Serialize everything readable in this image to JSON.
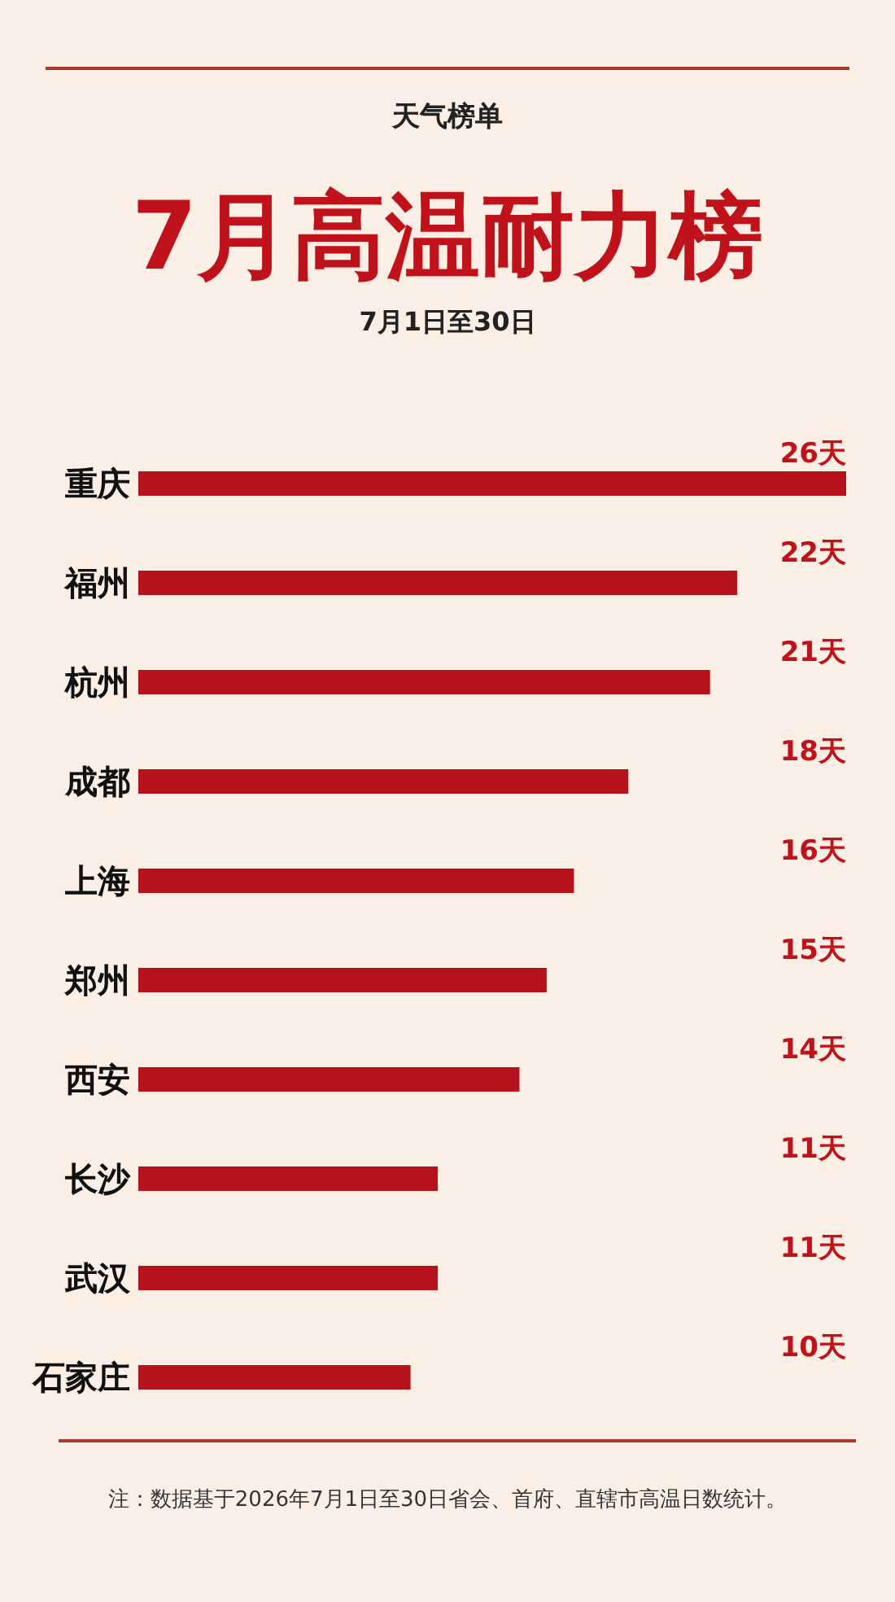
{
  "chart_data": {
    "type": "bar",
    "orientation": "horizontal",
    "title": "7月高温耐力榜",
    "subtitle": "7月1日至30日",
    "annotations": [
      "天气榜单",
      "注：数据基于2026年7月1日至30日省会、首府、直辖市高温日数统计。"
    ],
    "categories": [
      "重庆",
      "福州",
      "杭州",
      "成都",
      "上海",
      "郑州",
      "西安",
      "长沙",
      "武汉",
      "石家庄"
    ],
    "values": [
      26,
      22,
      21,
      18,
      16,
      15,
      14,
      11,
      11,
      10
    ],
    "value_labels": [
      "26天",
      "22天",
      "21天",
      "18天",
      "16天",
      "15天",
      "14天",
      "11天",
      "11天",
      "10天"
    ],
    "color": "#b5121b"
  }
}
